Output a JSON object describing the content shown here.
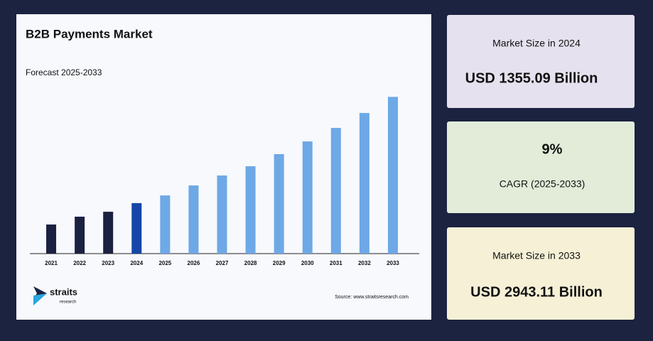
{
  "chart_data": {
    "type": "bar",
    "title": "B2B Payments Market",
    "subtitle": "Forecast 2025-2033",
    "categories": [
      "2021",
      "2022",
      "2023",
      "2024",
      "2025",
      "2026",
      "2027",
      "2028",
      "2029",
      "2030",
      "2031",
      "2032",
      "2033"
    ],
    "values": [
      1035,
      1152,
      1226,
      1355.09,
      1470,
      1619,
      1768,
      1906,
      2087,
      2277,
      2479,
      2702,
      2943.11
    ],
    "colors": [
      "#1b2140",
      "#1b2140",
      "#1b2140",
      "#1446a8",
      "#6ea8e6",
      "#6ea8e6",
      "#6ea8e6",
      "#6ea8e6",
      "#6ea8e6",
      "#6ea8e6",
      "#6ea8e6",
      "#6ea8e6",
      "#6ea8e6"
    ],
    "ylim": [
      600,
      3000
    ]
  },
  "source": "Source: www.straitsresearch.com",
  "logo": {
    "name": "straits",
    "sub": "research"
  },
  "cards": [
    {
      "label": "Market Size in 2024",
      "value": "USD 1355.09 Billion"
    },
    {
      "value": "9%",
      "label": "CAGR (2025-2033)"
    },
    {
      "label": "Market Size in 2033",
      "value": "USD 2943.11 Billion"
    }
  ]
}
